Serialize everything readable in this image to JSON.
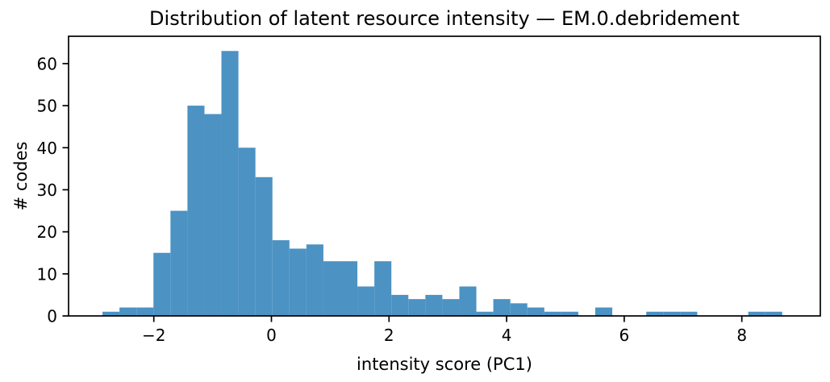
{
  "chart_data": {
    "type": "bar",
    "subtype": "histogram",
    "title": "Distribution of latent resource intensity — EM.0.debridement",
    "xlabel": "intensity score (PC1)",
    "ylabel": "# codes",
    "bin_start": -2.873,
    "bin_width": 0.289,
    "counts": [
      1,
      2,
      2,
      15,
      25,
      50,
      48,
      63,
      40,
      33,
      18,
      16,
      17,
      13,
      13,
      7,
      13,
      5,
      4,
      5,
      4,
      7,
      1,
      4,
      3,
      2,
      1,
      1,
      0,
      2,
      0,
      0,
      1,
      1,
      1,
      0,
      0,
      0,
      1,
      1
    ],
    "total_codes": 420,
    "xlim": [
      -3.45,
      9.335
    ],
    "ylim": [
      0,
      66.5
    ],
    "xticks": [
      -2,
      0,
      2,
      4,
      6,
      8
    ],
    "xtick_labels": [
      "−2",
      "0",
      "2",
      "4",
      "6",
      "8"
    ],
    "yticks": [
      0,
      10,
      20,
      30,
      40,
      50,
      60
    ],
    "ytick_labels": [
      "0",
      "10",
      "20",
      "30",
      "40",
      "50",
      "60"
    ],
    "grid": false,
    "legend": null,
    "bar_color": "#4c92c3",
    "axis_color": "#000000",
    "background_color": "#ffffff"
  }
}
